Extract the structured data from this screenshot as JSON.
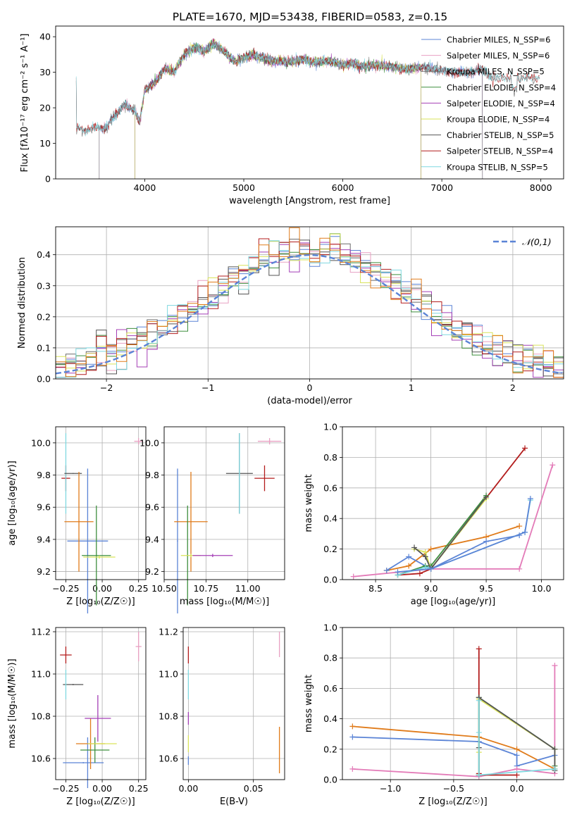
{
  "figure_title": "PLATE=1670, MJD=53438, FIBERID=0583, z=0.15",
  "colors": {
    "Chabrier MILES": "#5b84d6",
    "Salpeter MILES": "#e8a0c2",
    "Kroupa MILES": "#6b6b6b",
    "Chabrier ELODIE": "#3e8f3e",
    "Salpeter ELODIE": "#a43fb6",
    "Kroupa ELODIE": "#d9e35a",
    "Chabrier STELIB": "#555555",
    "Salpeter STELIB": "#b31d1d",
    "Kroupa STELIB": "#7fd8e0",
    "orange": "#e07b1a",
    "pink": "#e37bb8",
    "gaussian": "#5b84d6"
  },
  "chart_data": [
    {
      "type": "line",
      "name": "spectrum",
      "xlabel": "wavelength [Angstrom, rest frame]",
      "ylabel": "Flux [fλ10⁻¹⁷ erg cm⁻² s⁻¹ A⁻¹]",
      "xlim": [
        3100,
        8230
      ],
      "ylim": [
        0,
        43
      ],
      "xticks": [
        4000,
        5000,
        6000,
        7000,
        8000
      ],
      "yticks": [
        0,
        10,
        20,
        30,
        40
      ],
      "legend": [
        "Chabrier MILES, N_SSP=6",
        "Salpeter MILES, N_SSP=6",
        "Kroupa MILES, N_SSP=5",
        "Chabrier ELODIE, N_SSP=4",
        "Salpeter ELODIE, N_SSP=4",
        "Kroupa ELODIE, N_SSP=4",
        "Chabrier STELIB, N_SSP=5",
        "Salpeter STELIB, N_SSP=4",
        "Kroupa STELIB, N_SSP=5"
      ],
      "legend_placement": "upper right",
      "continuum": [
        [
          3310,
          14.5
        ],
        [
          3400,
          13.5
        ],
        [
          3500,
          14.5
        ],
        [
          3600,
          14
        ],
        [
          3700,
          18
        ],
        [
          3800,
          21
        ],
        [
          3900,
          19
        ],
        [
          3950,
          16
        ],
        [
          4000,
          25
        ],
        [
          4100,
          27
        ],
        [
          4200,
          31
        ],
        [
          4300,
          30
        ],
        [
          4400,
          35
        ],
        [
          4500,
          37
        ],
        [
          4600,
          36
        ],
        [
          4700,
          38
        ],
        [
          4800,
          36
        ],
        [
          4900,
          33
        ],
        [
          5000,
          34
        ],
        [
          5100,
          35
        ],
        [
          5200,
          34
        ],
        [
          5300,
          33
        ],
        [
          5400,
          33
        ],
        [
          5500,
          33
        ],
        [
          5600,
          33.5
        ],
        [
          5700,
          33
        ],
        [
          5800,
          33
        ],
        [
          5900,
          33
        ],
        [
          6000,
          32
        ],
        [
          6100,
          32.5
        ],
        [
          6200,
          31.5
        ],
        [
          6300,
          32
        ],
        [
          6400,
          32
        ],
        [
          6500,
          31.5
        ],
        [
          6600,
          31
        ],
        [
          6700,
          31
        ],
        [
          6800,
          31.5
        ],
        [
          6900,
          31
        ],
        [
          7000,
          30.5
        ],
        [
          7100,
          30
        ],
        [
          7200,
          30
        ],
        [
          7300,
          30
        ],
        [
          7400,
          31
        ],
        [
          7500,
          28.5
        ]
      ],
      "model_ranges": {
        "Chabrier MILES": [
          3540,
          7410
        ],
        "Salpeter MILES": [
          3540,
          7410
        ],
        "Kroupa MILES": [
          3540,
          7410
        ],
        "Chabrier ELODIE": [
          3900,
          6790
        ],
        "Salpeter ELODIE": [
          3900,
          6790
        ],
        "Kroupa ELODIE": [
          3900,
          6790
        ],
        "Chabrier STELIB": [
          3310,
          8000
        ],
        "Salpeter STELIB": [
          3310,
          8000
        ],
        "Kroupa STELIB": [
          3310,
          8000
        ]
      }
    },
    {
      "type": "histogram",
      "name": "residuals",
      "xlabel": "(data-model)/error",
      "ylabel": "Normed distribution",
      "xlim": [
        -2.5,
        2.5
      ],
      "ylim": [
        0,
        0.49
      ],
      "xticks": [
        -2,
        -1,
        0,
        1,
        2
      ],
      "yticks": [
        0.0,
        0.1,
        0.2,
        0.3,
        0.4
      ],
      "legend": [
        "𝒩(0,1)"
      ],
      "legend_placement": "upper right",
      "bin_width": 0.1
    },
    {
      "type": "errorbar",
      "name": "age_vs_Z",
      "xlabel": "Z [log₁₀(Z/Z☉)]",
      "ylabel": "age  [log₁₀(age/yr)]",
      "xlim": [
        -0.32,
        0.3
      ],
      "ylim": [
        9.15,
        10.1
      ],
      "xticks": [
        -0.25,
        0.0,
        0.25
      ],
      "yticks": [
        9.2,
        9.4,
        9.6,
        9.8,
        10.0
      ],
      "points": [
        {
          "series": "Salpeter STELIB",
          "x": -0.25,
          "y": 9.78,
          "xerr": 0.03,
          "yerr": 0.08
        },
        {
          "series": "Kroupa STELIB",
          "x": -0.25,
          "y": 9.81,
          "xerr": 0.003,
          "yerr": 0.25
        },
        {
          "series": "Chabrier STELIB",
          "x": -0.2,
          "y": 9.81,
          "xerr": 0.06,
          "yerr": 0.003
        },
        {
          "series": "Chabrier MILES",
          "x": -0.1,
          "y": 9.39,
          "xerr": 0.14,
          "yerr": 0.45
        },
        {
          "series": "orange",
          "x": -0.16,
          "y": 9.51,
          "xerr": 0.1,
          "yerr": 0.31
        },
        {
          "series": "Chabrier ELODIE",
          "x": -0.04,
          "y": 9.3,
          "xerr": 0.1,
          "yerr": 0.31
        },
        {
          "series": "Kroupa ELODIE",
          "x": -0.02,
          "y": 9.29,
          "xerr": 0.11,
          "yerr": 0.01
        },
        {
          "series": "Salpeter MILES",
          "x": 0.25,
          "y": 10.01,
          "xerr": 0.03,
          "yerr": 0.02
        }
      ]
    },
    {
      "type": "errorbar",
      "name": "age_vs_mass",
      "xlabel": "mass [log₁₀(M/M☉)]",
      "ylabel": "",
      "xlim": [
        10.5,
        11.22
      ],
      "ylim": [
        9.15,
        10.1
      ],
      "xticks": [
        10.5,
        10.75,
        11.0
      ],
      "yticks": [
        9.2,
        9.4,
        9.6,
        9.8,
        10.0
      ],
      "points": [
        {
          "series": "Salpeter STELIB",
          "x": 11.1,
          "y": 9.78,
          "xerr": 0.06,
          "yerr": 0.08
        },
        {
          "series": "Chabrier STELIB",
          "x": 10.95,
          "y": 9.81,
          "xerr": 0.08,
          "yerr": 0.25
        },
        {
          "series": "Kroupa STELIB",
          "x": 10.95,
          "y": 9.81,
          "xerr": 0.003,
          "yerr": 0.25
        },
        {
          "series": "Chabrier MILES",
          "x": 10.58,
          "y": 9.39,
          "xerr": 0.003,
          "yerr": 0.45
        },
        {
          "series": "orange",
          "x": 10.66,
          "y": 9.51,
          "xerr": 0.1,
          "yerr": 0.31
        },
        {
          "series": "Chabrier ELODIE",
          "x": 10.64,
          "y": 9.3,
          "xerr": 0.003,
          "yerr": 0.31
        },
        {
          "series": "Kroupa ELODIE",
          "x": 10.66,
          "y": 9.3,
          "xerr": 0.06,
          "yerr": 0.01
        },
        {
          "series": "Salpeter ELODIE",
          "x": 10.79,
          "y": 9.3,
          "xerr": 0.12,
          "yerr": 0.01
        },
        {
          "series": "Salpeter MILES",
          "x": 11.13,
          "y": 10.01,
          "xerr": 0.07,
          "yerr": 0.02
        }
      ]
    },
    {
      "type": "line",
      "name": "mass_weight_vs_age",
      "xlabel": "age  [log₁₀(age/yr)]",
      "ylabel": "mass weight",
      "xlim": [
        8.2,
        10.2
      ],
      "ylim": [
        0,
        1.0
      ],
      "xticks": [
        8.5,
        9.0,
        9.5,
        10.0
      ],
      "yticks": [
        0.0,
        0.2,
        0.4,
        0.6,
        0.8,
        1.0
      ],
      "series": [
        {
          "color": "pink",
          "x": [
            8.3,
            9.0,
            9.8,
            10.1
          ],
          "y": [
            0.02,
            0.07,
            0.07,
            0.75
          ]
        },
        {
          "color": "orange",
          "x": [
            8.6,
            8.8,
            9.0,
            9.5,
            9.8
          ],
          "y": [
            0.06,
            0.09,
            0.2,
            0.28,
            0.35
          ]
        },
        {
          "color": "Chabrier MILES",
          "x": [
            8.6,
            8.8,
            9.0,
            9.5,
            9.8
          ],
          "y": [
            0.06,
            0.15,
            0.07,
            0.25,
            0.29
          ]
        },
        {
          "color": "Salpeter STELIB",
          "x": [
            8.7,
            8.9,
            9.0,
            9.85
          ],
          "y": [
            0.03,
            0.04,
            0.07,
            0.86
          ]
        },
        {
          "color": "Chabrier ELODIE",
          "x": [
            8.7,
            8.95,
            9.0,
            9.5
          ],
          "y": [
            0.03,
            0.09,
            0.09,
            0.55
          ]
        },
        {
          "color": "Kroupa ELODIE",
          "x": [
            8.85,
            8.95,
            9.0,
            9.5
          ],
          "y": [
            0.2,
            0.18,
            0.07,
            0.53
          ]
        },
        {
          "color": "Chabrier STELIB",
          "x": [
            8.85,
            8.95,
            9.0,
            9.5
          ],
          "y": [
            0.21,
            0.15,
            0.07,
            0.54
          ]
        },
        {
          "color": "Kroupa STELIB",
          "x": [
            8.7,
            8.95,
            9.0,
            9.85,
            9.9
          ],
          "y": [
            0.03,
            0.08,
            0.07,
            0.31,
            0.52
          ]
        },
        {
          "color": "Chabrier MILES",
          "x": [
            8.7,
            9.0,
            9.85,
            9.9
          ],
          "y": [
            0.05,
            0.07,
            0.31,
            0.53
          ]
        }
      ]
    },
    {
      "type": "errorbar",
      "name": "mass_vs_Z",
      "xlabel": "Z [log₁₀(Z/Z☉)]",
      "ylabel": "mass [log₁₀(M/M☉)]",
      "xlim": [
        -0.32,
        0.3
      ],
      "ylim": [
        10.5,
        11.22
      ],
      "xticks": [
        -0.25,
        0.0,
        0.25
      ],
      "yticks": [
        10.6,
        10.8,
        11.0,
        11.2
      ],
      "points": [
        {
          "series": "Salpeter STELIB",
          "x": -0.25,
          "y": 11.09,
          "xerr": 0.04,
          "yerr": 0.04
        },
        {
          "series": "Chabrier STELIB",
          "x": -0.2,
          "y": 10.95,
          "xerr": 0.07,
          "yerr": 0.003
        },
        {
          "series": "Kroupa STELIB",
          "x": -0.25,
          "y": 10.95,
          "xerr": 0.003,
          "yerr": 0.07
        },
        {
          "series": "Chabrier MILES",
          "x": -0.13,
          "y": 10.58,
          "xerr": 0.14,
          "yerr": 0.003
        },
        {
          "series": "Chabrier MILES",
          "x": -0.1,
          "y": 10.58,
          "xerr": 0.003,
          "yerr": 0.12
        },
        {
          "series": "orange",
          "x": -0.08,
          "y": 10.67,
          "xerr": 0.1,
          "yerr": 0.12
        },
        {
          "series": "Chabrier ELODIE",
          "x": -0.05,
          "y": 10.64,
          "xerr": 0.1,
          "yerr": 0.06
        },
        {
          "series": "Kroupa ELODIE",
          "x": 0.0,
          "y": 10.67,
          "xerr": 0.1,
          "yerr": 0.003
        },
        {
          "series": "Salpeter ELODIE",
          "x": -0.03,
          "y": 10.79,
          "xerr": 0.09,
          "yerr": 0.11
        },
        {
          "series": "Salpeter MILES",
          "x": 0.25,
          "y": 11.13,
          "xerr": 0.02,
          "yerr": 0.07
        }
      ]
    },
    {
      "type": "errorbar",
      "name": "mass_vs_EBV",
      "xlabel": "E(B-V)",
      "ylabel": "",
      "xlim": [
        -0.004,
        0.074
      ],
      "ylim": [
        10.5,
        11.22
      ],
      "xticks": [
        0.0,
        0.05
      ],
      "yticks": [
        10.6,
        10.8,
        11.0,
        11.2
      ],
      "points": [
        {
          "series": "Salpeter STELIB",
          "x": 0.0,
          "y": 11.09,
          "xerr": 0.0,
          "yerr": 0.04
        },
        {
          "series": "Kroupa STELIB",
          "x": 0.0,
          "y": 10.95,
          "xerr": 0.0,
          "yerr": 0.07
        },
        {
          "series": "Salpeter ELODIE",
          "x": 0.0,
          "y": 10.79,
          "xerr": 0.0,
          "yerr": 0.03
        },
        {
          "series": "Kroupa ELODIE",
          "x": 0.0,
          "y": 10.67,
          "xerr": 0.0,
          "yerr": 0.04
        },
        {
          "series": "Chabrier MILES",
          "x": 0.0,
          "y": 10.59,
          "xerr": 0.0,
          "yerr": 0.02
        },
        {
          "series": "orange",
          "x": 0.07,
          "y": 10.64,
          "xerr": 0.0,
          "yerr": 0.11
        },
        {
          "series": "Salpeter MILES",
          "x": 0.07,
          "y": 11.14,
          "xerr": 0.0,
          "yerr": 0.06
        }
      ]
    },
    {
      "type": "line",
      "name": "mass_weight_vs_Z",
      "xlabel": "Z [log₁₀(Z/Z☉)]",
      "ylabel": "mass weight",
      "xlim": [
        -1.38,
        0.37
      ],
      "ylim": [
        0,
        1.0
      ],
      "xticks": [
        -1.0,
        -0.5,
        0.0
      ],
      "yticks": [
        0.0,
        0.2,
        0.4,
        0.6,
        0.8,
        1.0
      ],
      "series": [
        {
          "color": "orange",
          "x": [
            -1.3,
            -0.3,
            0.0,
            0.3
          ],
          "y": [
            0.35,
            0.28,
            0.2,
            0.07
          ]
        },
        {
          "color": "Chabrier MILES",
          "x": [
            -1.3,
            -0.3,
            0.0,
            0.0,
            0.3
          ],
          "y": [
            0.28,
            0.25,
            0.16,
            0.09,
            0.16
          ]
        },
        {
          "color": "pink",
          "x": [
            -1.3,
            -0.3,
            0.0,
            0.3,
            0.3
          ],
          "y": [
            0.07,
            0.02,
            0.07,
            0.04,
            0.75
          ]
        },
        {
          "color": "Salpeter STELIB",
          "x": [
            -0.3,
            -0.3,
            -0.3,
            0.0
          ],
          "y": [
            0.86,
            0.04,
            0.03,
            0.03
          ]
        },
        {
          "color": "Chabrier ELODIE",
          "x": [
            -0.3,
            -0.3,
            0.3,
            0.3
          ],
          "y": [
            0.03,
            0.54,
            0.2,
            0.09
          ]
        },
        {
          "color": "Kroupa ELODIE",
          "x": [
            -0.3,
            -0.3,
            0.3,
            0.3
          ],
          "y": [
            0.18,
            0.53,
            0.2,
            0.07
          ]
        },
        {
          "color": "Chabrier STELIB",
          "x": [
            -0.3,
            -0.3,
            0.3,
            0.3
          ],
          "y": [
            0.21,
            0.54,
            0.2,
            0.06
          ]
        },
        {
          "color": "Kroupa STELIB",
          "x": [
            -0.3,
            -0.3,
            -0.3,
            0.3
          ],
          "y": [
            0.52,
            0.31,
            0.03,
            0.07
          ]
        }
      ]
    }
  ]
}
